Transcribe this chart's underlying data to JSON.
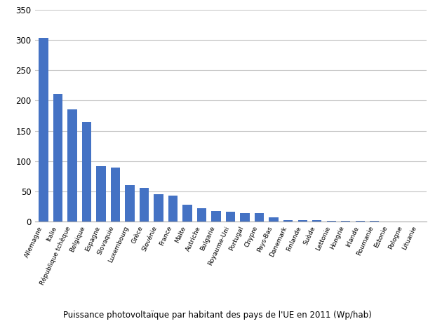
{
  "categories": [
    "Allemagne",
    "Italie",
    "République tchèque",
    "Belgique",
    "Espagne",
    "Slovaquie",
    "Luxembourg",
    "Grèce",
    "Slovénie",
    "France",
    "Malte",
    "Autriche",
    "Bulgarie",
    "Royaume-Uni",
    "Portugal",
    "Chypre",
    "Pays-Bas",
    "Danemark",
    "Finlande",
    "Suède",
    "Lettonie",
    "Hongrie",
    "Irlande",
    "Roumanie",
    "Estonie",
    "Pologne",
    "Lituanie"
  ],
  "values": [
    304,
    211,
    185,
    165,
    92,
    89,
    60,
    56,
    45,
    43,
    28,
    22,
    18,
    17,
    14,
    14,
    7,
    3,
    2,
    2,
    1,
    1,
    1,
    1,
    0.5,
    0.3,
    0.2
  ],
  "bar_color": "#4472C4",
  "title": "Puissance photovoltaïque par habitant des pays de l'UE en 2011 (Wp/hab)",
  "ylim": [
    0,
    350
  ],
  "yticks": [
    0,
    50,
    100,
    150,
    200,
    250,
    300,
    350
  ],
  "background_color": "#ffffff",
  "grid_color": "#c8c8c8",
  "title_fontsize": 8.5,
  "xtick_fontsize": 6.5,
  "ytick_fontsize": 8.5
}
